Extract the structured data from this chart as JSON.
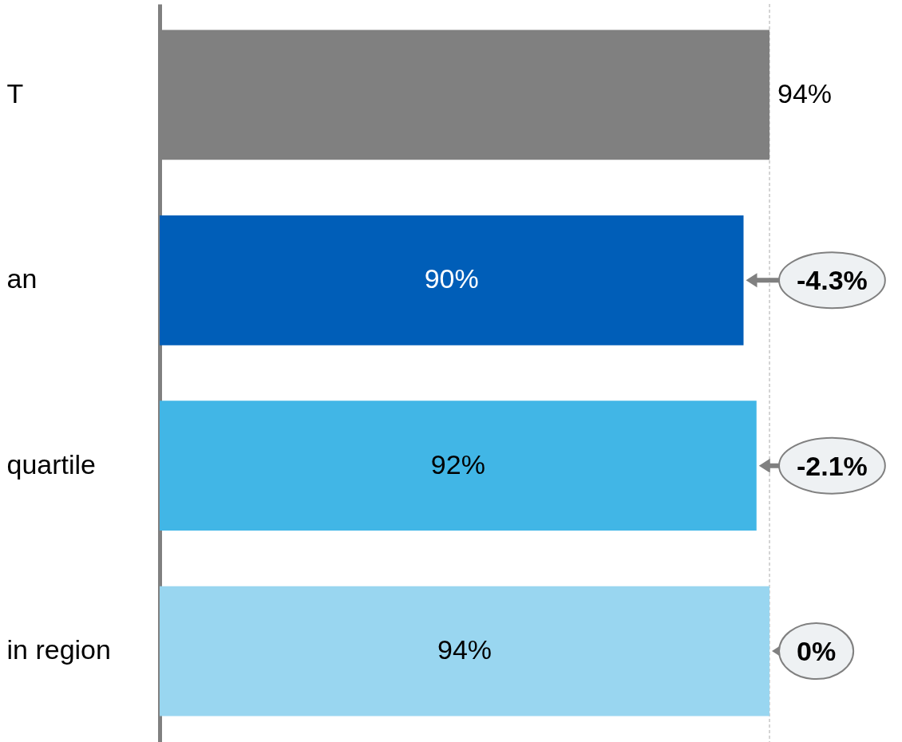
{
  "chart_data": {
    "type": "bar",
    "orientation": "horizontal",
    "categories": [
      "T",
      "an",
      "quartile",
      "in region"
    ],
    "values": [
      94,
      90,
      92,
      94
    ],
    "colors": [
      "#808080",
      "#005eb8",
      "#41b6e6",
      "#99d6f0"
    ],
    "value_labels": [
      "94%",
      "90%",
      "92%",
      "94%"
    ],
    "ref_lines": [
      {
        "axis": "x",
        "value": 94,
        "color": "#aaaaaa",
        "line_style": "dashed"
      }
    ],
    "annotations": [
      {
        "text": "-4.3%",
        "x": 90,
        "y": "an"
      },
      {
        "text": "-2.1%",
        "x": 92,
        "y": "quartile"
      },
      {
        "text": "0%",
        "x": 94,
        "y": "in region"
      }
    ]
  }
}
